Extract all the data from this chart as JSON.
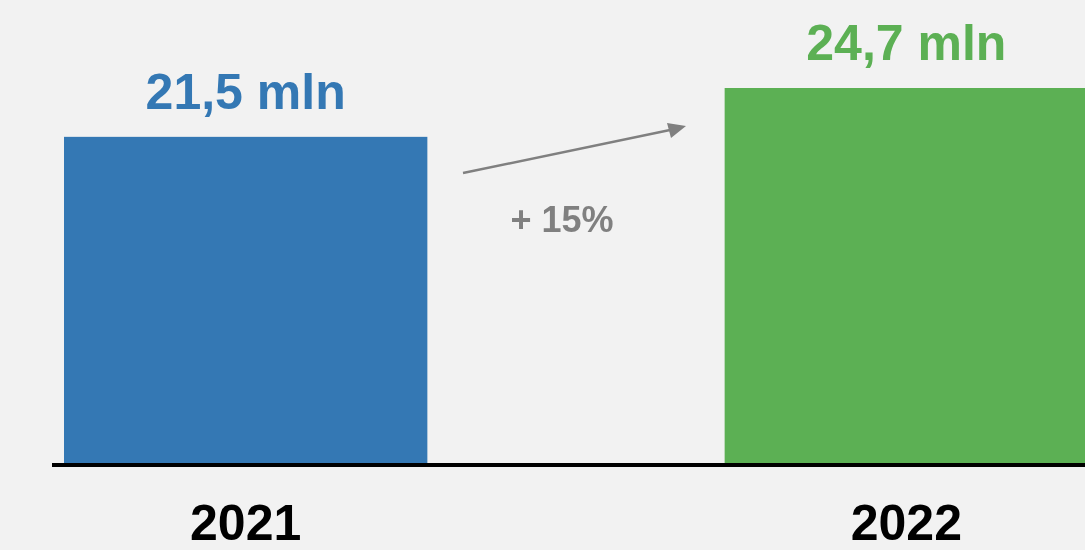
{
  "chart_data": {
    "type": "bar",
    "categories": [
      "2021",
      "2022"
    ],
    "values": [
      21.5,
      24.7
    ],
    "colors": [
      "#3478b4",
      "#5cb054"
    ],
    "value_labels": [
      "21,5 mln",
      "24,7 mln"
    ],
    "annotations": [
      "+ 15%"
    ]
  }
}
